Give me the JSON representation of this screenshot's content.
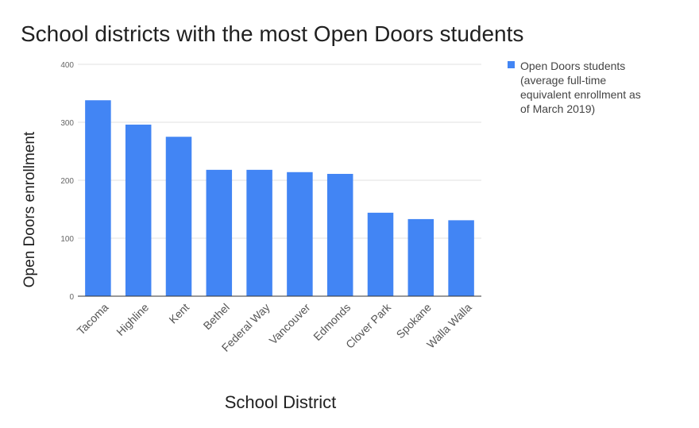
{
  "chart_data": {
    "type": "bar",
    "title": "School districts with the most Open Doors students",
    "xlabel": "School District",
    "ylabel": "Open Doors enrollment",
    "categories": [
      "Tacoma",
      "Highline",
      "Kent",
      "Bethel",
      "Federal Way",
      "Vancouver",
      "Edmonds",
      "Clover Park",
      "Spokane",
      "Walla Walla"
    ],
    "series": [
      {
        "name": "Open Doors students (average full-time equivalent enrollment as of March 2019)",
        "values": [
          338,
          296,
          275,
          218,
          218,
          214,
          211,
          144,
          133,
          131
        ]
      }
    ],
    "yticks": [
      "0",
      "100",
      "200",
      "300",
      "400"
    ],
    "ylim": [
      0,
      400
    ],
    "grid": true,
    "legend_position": "right",
    "legend_lines": [
      "Open Doors students",
      "(average full-time",
      "equivalent enrollment as",
      "of March 2019)"
    ],
    "colors": {
      "bar": "#4285f4",
      "grid": "#e0e0e0",
      "axis": "#333333",
      "tick_text": "#666666",
      "text": "#212121"
    }
  }
}
